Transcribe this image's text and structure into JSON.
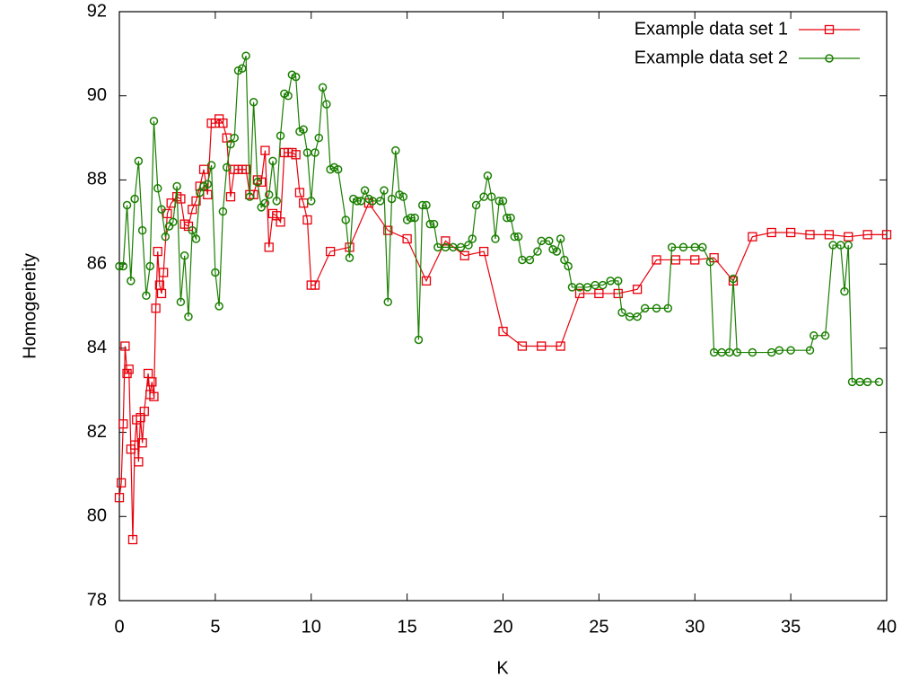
{
  "chart_data": {
    "type": "line",
    "xlabel": "K",
    "ylabel": "Homogeneity",
    "xlim": [
      0,
      40
    ],
    "ylim": [
      78,
      92
    ],
    "xticks": [
      0,
      5,
      10,
      15,
      20,
      25,
      30,
      35,
      40
    ],
    "yticks": [
      78,
      80,
      82,
      84,
      86,
      88,
      90,
      92
    ],
    "legend": "top-right",
    "series": [
      {
        "name": "Example data set 1",
        "color": "#e8000b",
        "marker": "square",
        "x": [
          0,
          0.1,
          0.2,
          0.3,
          0.4,
          0.5,
          0.6,
          0.7,
          0.8,
          0.9,
          1.0,
          1.1,
          1.2,
          1.3,
          1.5,
          1.6,
          1.7,
          1.8,
          1.9,
          2.0,
          2.1,
          2.2,
          2.3,
          2.5,
          2.7,
          3.0,
          3.2,
          3.4,
          3.6,
          3.8,
          4.0,
          4.2,
          4.4,
          4.6,
          4.8,
          5.0,
          5.2,
          5.4,
          5.6,
          5.8,
          6.0,
          6.2,
          6.4,
          6.6,
          6.8,
          7.0,
          7.2,
          7.4,
          7.6,
          7.8,
          8.0,
          8.2,
          8.4,
          8.6,
          8.8,
          9.0,
          9.2,
          9.4,
          9.6,
          9.8,
          10,
          10.2,
          11,
          12,
          13,
          14,
          15,
          16,
          17,
          18,
          19,
          20,
          21,
          22,
          23,
          24,
          25,
          26,
          27,
          28,
          29,
          30,
          31,
          32,
          33,
          34,
          35,
          36,
          37,
          38,
          39,
          40
        ],
        "values": [
          80.45,
          80.8,
          82.2,
          84.05,
          83.4,
          83.5,
          81.6,
          79.45,
          81.7,
          82.3,
          81.3,
          82.35,
          81.75,
          82.5,
          83.4,
          82.9,
          83.2,
          82.85,
          84.95,
          86.3,
          85.5,
          85.3,
          85.8,
          87.2,
          87.45,
          87.6,
          87.55,
          86.95,
          86.9,
          87.3,
          87.5,
          87.85,
          88.25,
          87.65,
          89.35,
          89.35,
          89.45,
          89.35,
          89.0,
          87.6,
          88.25,
          88.25,
          88.25,
          88.25,
          87.65,
          87.65,
          88.0,
          87.95,
          88.7,
          86.4,
          87.2,
          87.15,
          87.0,
          88.65,
          88.65,
          88.65,
          88.6,
          87.7,
          87.45,
          87.05,
          85.5,
          85.5,
          86.3,
          86.4,
          87.45,
          86.8,
          86.6,
          85.6,
          86.55,
          86.2,
          86.3,
          84.4,
          84.05,
          84.05,
          84.05,
          85.3,
          85.3,
          85.3,
          85.4,
          86.1,
          86.1,
          86.1,
          86.15,
          85.6,
          86.65,
          86.75,
          86.75,
          86.7,
          86.7,
          86.65,
          86.7,
          86.7
        ]
      },
      {
        "name": "Example data set 2",
        "color": "#1a7f00",
        "marker": "circle",
        "x": [
          0,
          0.2,
          0.4,
          0.6,
          0.8,
          1.0,
          1.2,
          1.4,
          1.6,
          1.8,
          2.0,
          2.2,
          2.4,
          2.6,
          2.8,
          3.0,
          3.2,
          3.4,
          3.6,
          3.8,
          4.0,
          4.2,
          4.4,
          4.6,
          4.8,
          5.0,
          5.2,
          5.4,
          5.6,
          5.8,
          6.0,
          6.2,
          6.4,
          6.6,
          6.8,
          7.0,
          7.2,
          7.4,
          7.6,
          7.8,
          8.0,
          8.2,
          8.4,
          8.6,
          8.8,
          9.0,
          9.2,
          9.4,
          9.6,
          9.8,
          10.0,
          10.2,
          10.4,
          10.6,
          10.8,
          11.0,
          11.2,
          11.4,
          11.8,
          12.0,
          12.2,
          12.4,
          12.6,
          12.8,
          13.0,
          13.2,
          13.6,
          13.8,
          14.0,
          14.2,
          14.4,
          14.6,
          14.8,
          15.0,
          15.2,
          15.4,
          15.6,
          15.8,
          16.0,
          16.2,
          16.4,
          16.6,
          17,
          17.4,
          17.8,
          18.2,
          18.4,
          18.6,
          19.0,
          19.2,
          19.4,
          19.6,
          19.8,
          20.0,
          20.2,
          20.4,
          20.6,
          20.8,
          21.0,
          21.4,
          21.8,
          22.0,
          22.4,
          22.6,
          22.8,
          23.0,
          23.2,
          23.4,
          23.6,
          24,
          24.4,
          24.8,
          25.2,
          25.6,
          26,
          26.2,
          26.6,
          27,
          27.4,
          28,
          28.6,
          28.8,
          29.4,
          30,
          30.4,
          30.8,
          31,
          31.4,
          31.8,
          32,
          32.2,
          33,
          34,
          34.4,
          35,
          36,
          36.2,
          36.8,
          37.2,
          37.6,
          37.8,
          38.0,
          38.2,
          38.6,
          39,
          39.6
        ],
        "values": [
          85.95,
          85.95,
          87.4,
          85.6,
          87.55,
          88.45,
          86.8,
          85.25,
          85.95,
          89.4,
          87.8,
          87.3,
          86.65,
          86.9,
          87.0,
          87.85,
          85.1,
          86.2,
          84.75,
          86.8,
          86.6,
          87.7,
          87.85,
          87.9,
          88.35,
          85.8,
          85.0,
          87.25,
          88.3,
          88.85,
          89.0,
          90.6,
          90.65,
          90.95,
          87.6,
          89.85,
          87.95,
          87.35,
          87.45,
          87.65,
          88.45,
          87.5,
          89.05,
          90.05,
          90.0,
          90.5,
          90.45,
          89.15,
          89.2,
          88.65,
          87.5,
          88.65,
          89.0,
          90.2,
          89.8,
          88.25,
          88.3,
          88.25,
          87.05,
          86.15,
          87.55,
          87.5,
          87.5,
          87.75,
          87.55,
          87.5,
          87.5,
          87.75,
          85.1,
          87.55,
          88.7,
          87.65,
          87.6,
          87.05,
          87.1,
          87.1,
          84.2,
          87.4,
          87.4,
          86.95,
          86.95,
          86.4,
          86.4,
          86.4,
          86.4,
          86.45,
          86.6,
          87.4,
          87.6,
          88.1,
          87.6,
          86.6,
          87.5,
          87.5,
          87.1,
          87.1,
          86.65,
          86.65,
          86.1,
          86.1,
          86.3,
          86.55,
          86.55,
          86.35,
          86.3,
          86.6,
          86.1,
          85.95,
          85.45,
          85.45,
          85.45,
          85.5,
          85.5,
          85.6,
          85.6,
          84.85,
          84.75,
          84.75,
          84.95,
          84.95,
          84.95,
          86.4,
          86.4,
          86.4,
          86.4,
          86.05,
          83.9,
          83.9,
          83.9,
          85.65,
          83.9,
          83.9,
          83.9,
          83.95,
          83.95,
          83.95,
          84.3,
          84.3,
          86.45,
          86.45,
          85.35,
          86.45,
          83.2,
          83.2,
          83.2,
          83.2
        ]
      }
    ]
  }
}
